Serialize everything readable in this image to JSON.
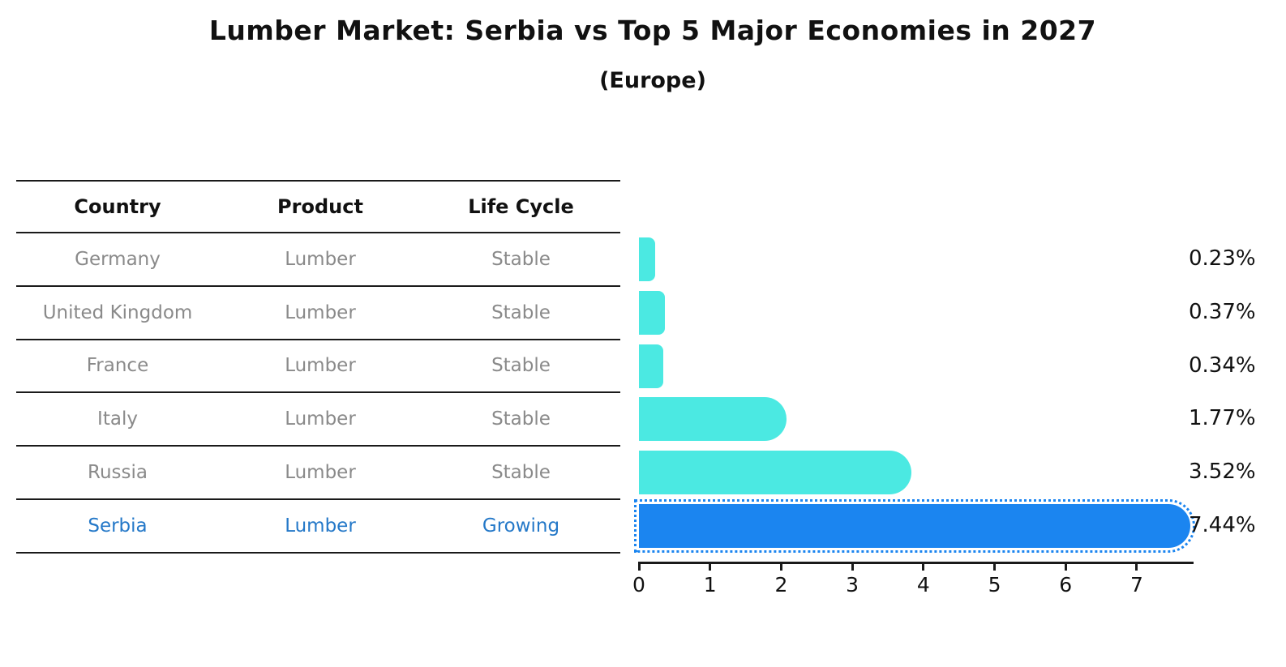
{
  "title": "Lumber Market: Serbia vs Top 5 Major Economies in 2027",
  "subtitle": "(Europe)",
  "table": {
    "headers": [
      "Country",
      "Product",
      "Life Cycle"
    ],
    "rows": [
      {
        "country": "Germany",
        "product": "Lumber",
        "life_cycle": "Stable",
        "highlight": false
      },
      {
        "country": "United Kingdom",
        "product": "Lumber",
        "life_cycle": "Stable",
        "highlight": false
      },
      {
        "country": "France",
        "product": "Lumber",
        "life_cycle": "Stable",
        "highlight": false
      },
      {
        "country": "Italy",
        "product": "Lumber",
        "life_cycle": "Stable",
        "highlight": false
      },
      {
        "country": "Russia",
        "product": "Lumber",
        "life_cycle": "Stable",
        "highlight": false
      },
      {
        "country": "Serbia",
        "product": "Lumber",
        "life_cycle": "Growing",
        "highlight": true
      }
    ]
  },
  "chart_data": {
    "type": "bar",
    "orientation": "horizontal",
    "title": "Lumber Market: Serbia vs Top 5 Major Economies in 2027 (Europe)",
    "categories": [
      "Germany",
      "United Kingdom",
      "France",
      "Italy",
      "Russia",
      "Serbia"
    ],
    "values": [
      0.23,
      0.37,
      0.34,
      1.77,
      3.52,
      7.44
    ],
    "labels": [
      "0.23%",
      "0.37%",
      "0.34%",
      "1.77%",
      "3.52%",
      "7.44%"
    ],
    "x_ticks": [
      "0",
      "1",
      "2",
      "3",
      "4",
      "5",
      "6",
      "7"
    ],
    "xlim": [
      0,
      7.8
    ],
    "grid": false,
    "legend": false,
    "highlight_index": 5
  },
  "colors": {
    "bar": "#4BE9E2",
    "highlight_bar": "#1B85F0",
    "text": "#111111",
    "muted_text": "#8a8a8a",
    "highlight_text": "#2478C8",
    "rule": "#1a1a1a"
  }
}
